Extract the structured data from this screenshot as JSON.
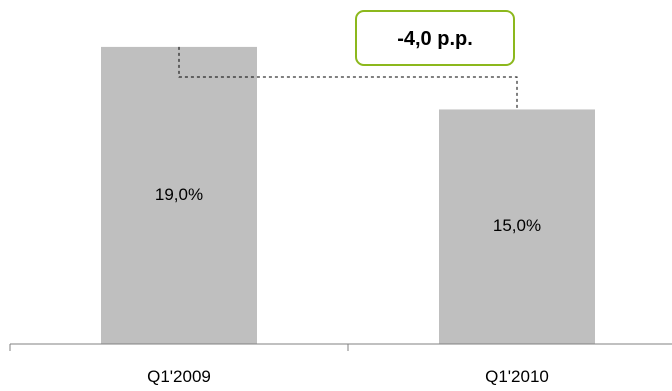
{
  "chart_data": {
    "type": "bar",
    "categories": [
      "Q1'2009",
      "Q1'2010"
    ],
    "values": [
      19.0,
      15.0
    ],
    "value_labels": [
      "19,0%",
      "15,0%"
    ],
    "annotation": "-4,0 p.p.",
    "ylim": [
      0,
      22
    ],
    "grid": false,
    "legend": "none",
    "colors": {
      "bar": "#bfbfbf",
      "axis": "#808080",
      "connector": "#000000",
      "annotation_border": "#8cb81d"
    }
  }
}
